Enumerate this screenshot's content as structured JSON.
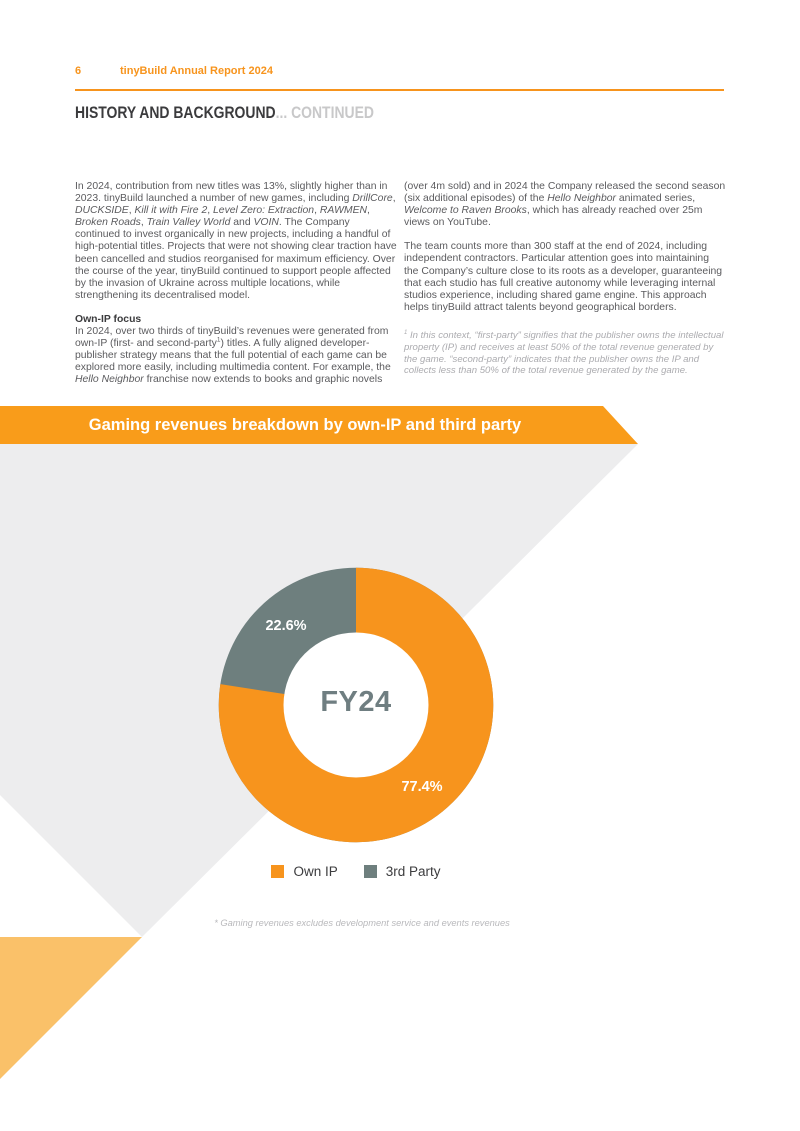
{
  "header": {
    "page_number": "6",
    "report_title": "tinyBuild Annual Report 2024"
  },
  "section": {
    "title": "HISTORY AND BACKGROUND",
    "suffix": "... CONTINUED"
  },
  "columns": {
    "left": [
      {
        "style": "paragraph",
        "segments": [
          {
            "t": "In 2024, contribution from new titles was 13%, slightly higher than in 2023. tinyBuild launched a number of new games, including "
          },
          {
            "t": "DrillCore",
            "i": true
          },
          {
            "t": ", "
          },
          {
            "t": "DUCKSIDE",
            "i": true
          },
          {
            "t": ", "
          },
          {
            "t": "Kill it with Fire 2",
            "i": true
          },
          {
            "t": ", "
          },
          {
            "t": "Level Zero: Extraction",
            "i": true
          },
          {
            "t": ", "
          },
          {
            "t": "RAWMEN",
            "i": true
          },
          {
            "t": ", "
          },
          {
            "t": "Broken Roads",
            "i": true
          },
          {
            "t": ", "
          },
          {
            "t": "Train Valley World",
            "i": true
          },
          {
            "t": " and "
          },
          {
            "t": "VOIN",
            "i": true
          },
          {
            "t": ". The Company continued to invest organically in new projects, including a handful of high-potential titles. Projects that were not showing clear traction have been cancelled and studios reorganised for maximum efficiency. Over the course of the year, tinyBuild continued to support people affected by the invasion of Ukraine across multiple locations, while strengthening its decentralised model."
          }
        ]
      },
      {
        "style": "subhead",
        "segments": [
          {
            "t": "Own-IP focus",
            "b": true
          }
        ]
      },
      {
        "style": "paragraph",
        "segments": [
          {
            "t": "In 2024, over two thirds of tinyBuild’s revenues were generated from own-IP (first- and second-party"
          },
          {
            "t": "1",
            "sup": true
          },
          {
            "t": ") titles. A fully aligned developer-publisher strategy means that the full potential of each game can be explored more easily, including multimedia content. For example, the "
          },
          {
            "t": "Hello Neighbor",
            "i": true
          },
          {
            "t": " franchise now extends to books and graphic novels"
          }
        ]
      }
    ],
    "right": [
      {
        "style": "paragraph",
        "segments": [
          {
            "t": "(over 4m sold) and in 2024 the Company released the second season (six additional episodes) of the "
          },
          {
            "t": "Hello Neighbor",
            "i": true
          },
          {
            "t": " animated series, "
          },
          {
            "t": "Welcome to Raven Brooks",
            "i": true
          },
          {
            "t": ", which has already reached over 25m views on YouTube."
          }
        ]
      },
      {
        "style": "paragraph",
        "segments": [
          {
            "t": "The team counts more than 300 staff at the end of 2024, including independent contractors. Particular attention goes into maintaining the Company’s culture close to its roots as a developer, guaranteeing that each studio has full creative autonomy while leveraging internal studios experience, including shared game engine. This approach helps tinyBuild attract talents beyond geographical borders."
          }
        ]
      },
      {
        "style": "footnote",
        "segments": [
          {
            "t": "1",
            "sup": true
          },
          {
            "t": "  In this context, “first-party” signifies that the publisher owns the intellectual property (IP) and receives at least 50% of the total revenue generated by the game. “second-party” indicates that the publisher owns the IP and collects less than 50% of the total revenue generated by the game."
          }
        ]
      }
    ]
  },
  "chart_data": {
    "type": "pie",
    "donut": true,
    "title": "Gaming revenues breakdown by own-IP and third party",
    "center_label": "FY24",
    "labels": [
      "Own IP",
      "3rd Party"
    ],
    "values": [
      77.4,
      22.6
    ],
    "value_labels": [
      "77.4%",
      "22.6%"
    ],
    "colors": [
      "#F7941D",
      "#6E7F7E"
    ],
    "legend_position": "bottom",
    "footnote": "* Gaming revenues excludes development service and events revenues"
  },
  "colors": {
    "accent_orange": "#F7941D",
    "banner_orange": "#F99C1A",
    "light_orange": "#FAC169",
    "slate_gray": "#6E7F7E",
    "background_triangle_gray": "#EDEDEE"
  }
}
